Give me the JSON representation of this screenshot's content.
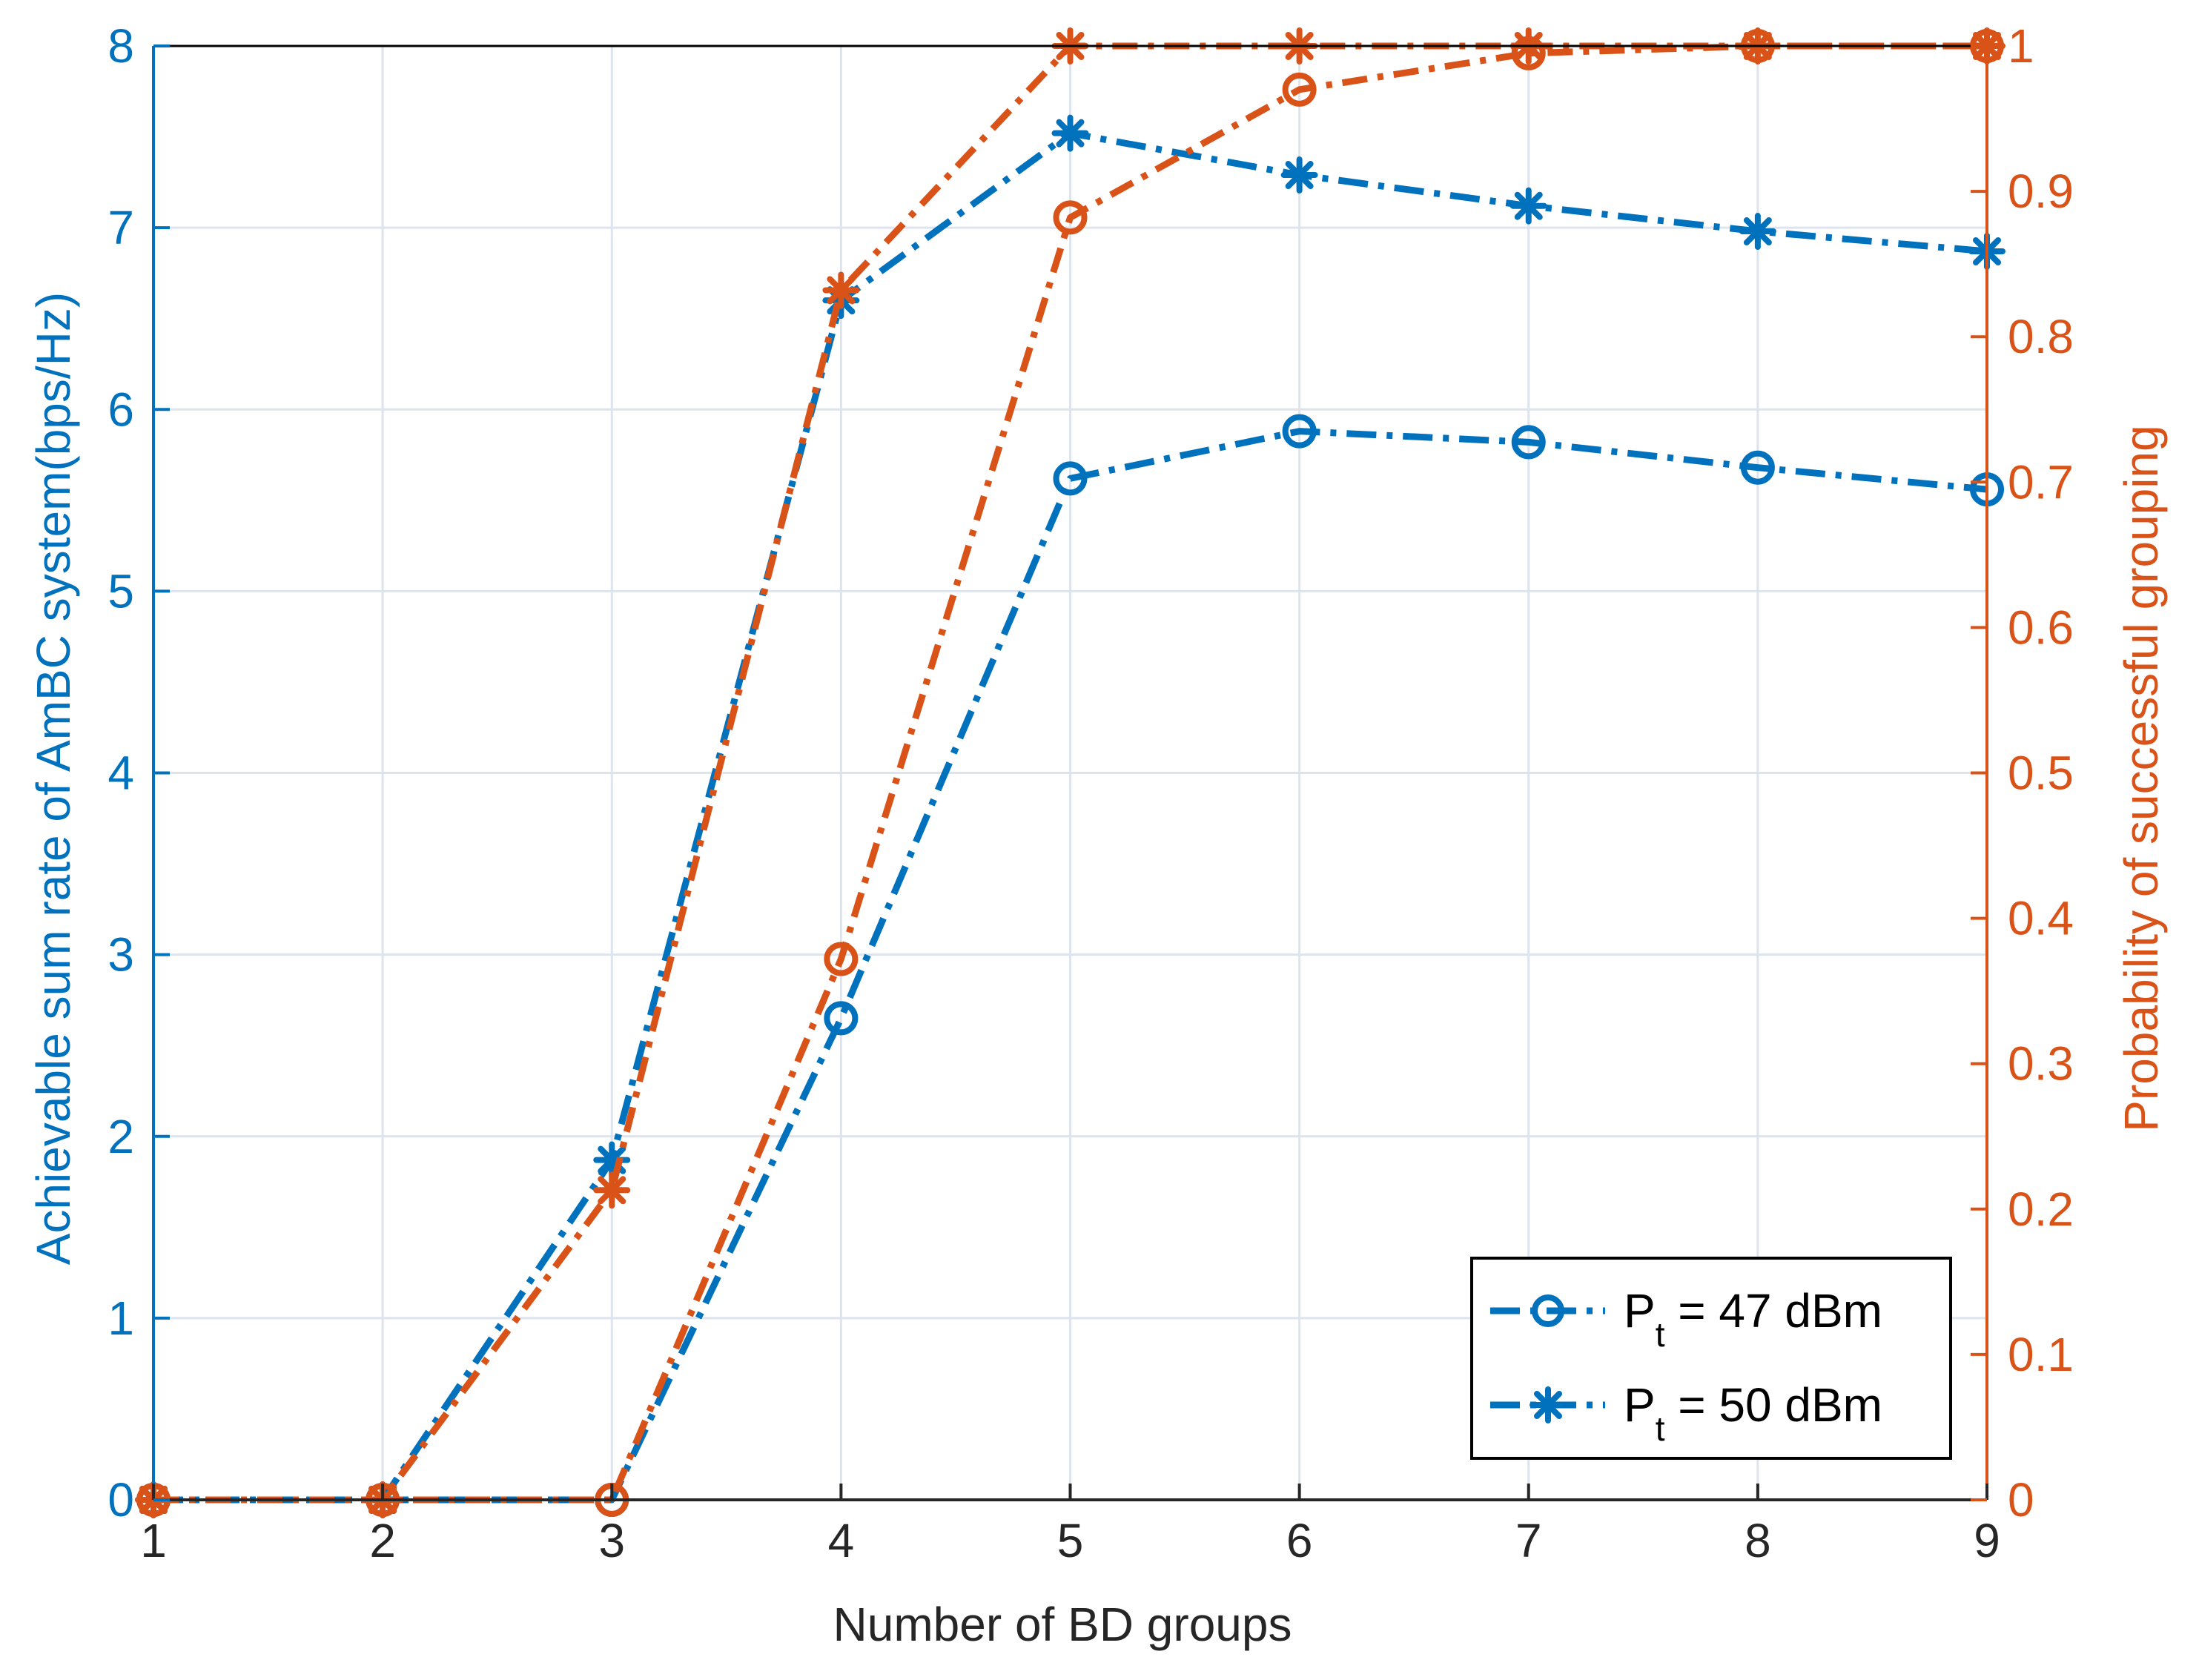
{
  "colors": {
    "blue": "#0072BD",
    "orange": "#D95319",
    "grid": "#DDE4EE",
    "axis": "#262626",
    "box": "#000000"
  },
  "chart_data": {
    "type": "line",
    "title": "",
    "xlabel": "Number of BD groups",
    "ylabel_left": "Achievable sum rate of AmBC system(bps/Hz)",
    "ylabel_right": "Probability of successful grouping",
    "x": [
      1,
      2,
      3,
      4,
      5,
      6,
      7,
      8,
      9
    ],
    "xlim": [
      1,
      9
    ],
    "ylim_left": [
      0,
      8
    ],
    "ylim_right": [
      0,
      1
    ],
    "x_ticks": [
      "1",
      "2",
      "3",
      "4",
      "5",
      "6",
      "7",
      "8",
      "9"
    ],
    "y_ticks_left": [
      "0",
      "1",
      "2",
      "3",
      "4",
      "5",
      "6",
      "7",
      "8"
    ],
    "y_ticks_right": [
      "0",
      "0.1",
      "0.2",
      "0.3",
      "0.4",
      "0.5",
      "0.6",
      "0.7",
      "0.8",
      "0.9",
      "1"
    ],
    "grid": true,
    "legend_position": "bottom-right",
    "legend": [
      {
        "label": "P",
        "subscript": "t",
        "suffix": " = 47 dBm",
        "marker": "circle"
      },
      {
        "label": "P",
        "subscript": "t",
        "suffix": " = 50 dBm",
        "marker": "asterisk"
      }
    ],
    "series": [
      {
        "name": "Pt = 47 dBm (sum rate)",
        "axis": "left",
        "marker": "circle",
        "color": "#0072BD",
        "values": [
          0,
          0,
          0,
          2.65,
          5.62,
          5.88,
          5.82,
          5.68,
          5.56
        ]
      },
      {
        "name": "Pt = 50 dBm (sum rate)",
        "axis": "left",
        "marker": "asterisk",
        "color": "#0072BD",
        "values": [
          0,
          0,
          1.87,
          6.6,
          7.52,
          7.29,
          7.12,
          6.98,
          6.87
        ]
      },
      {
        "name": "Pt = 47 dBm (probability)",
        "axis": "right",
        "marker": "circle",
        "color": "#D95319",
        "values": [
          0,
          0,
          0,
          0.372,
          0.882,
          0.97,
          0.995,
          1.0,
          1.0
        ]
      },
      {
        "name": "Pt = 50 dBm (probability)",
        "axis": "right",
        "marker": "asterisk",
        "color": "#D95319",
        "values": [
          0,
          0,
          0.213,
          0.832,
          1.0,
          1.0,
          1.0,
          1.0,
          1.0
        ]
      }
    ]
  }
}
